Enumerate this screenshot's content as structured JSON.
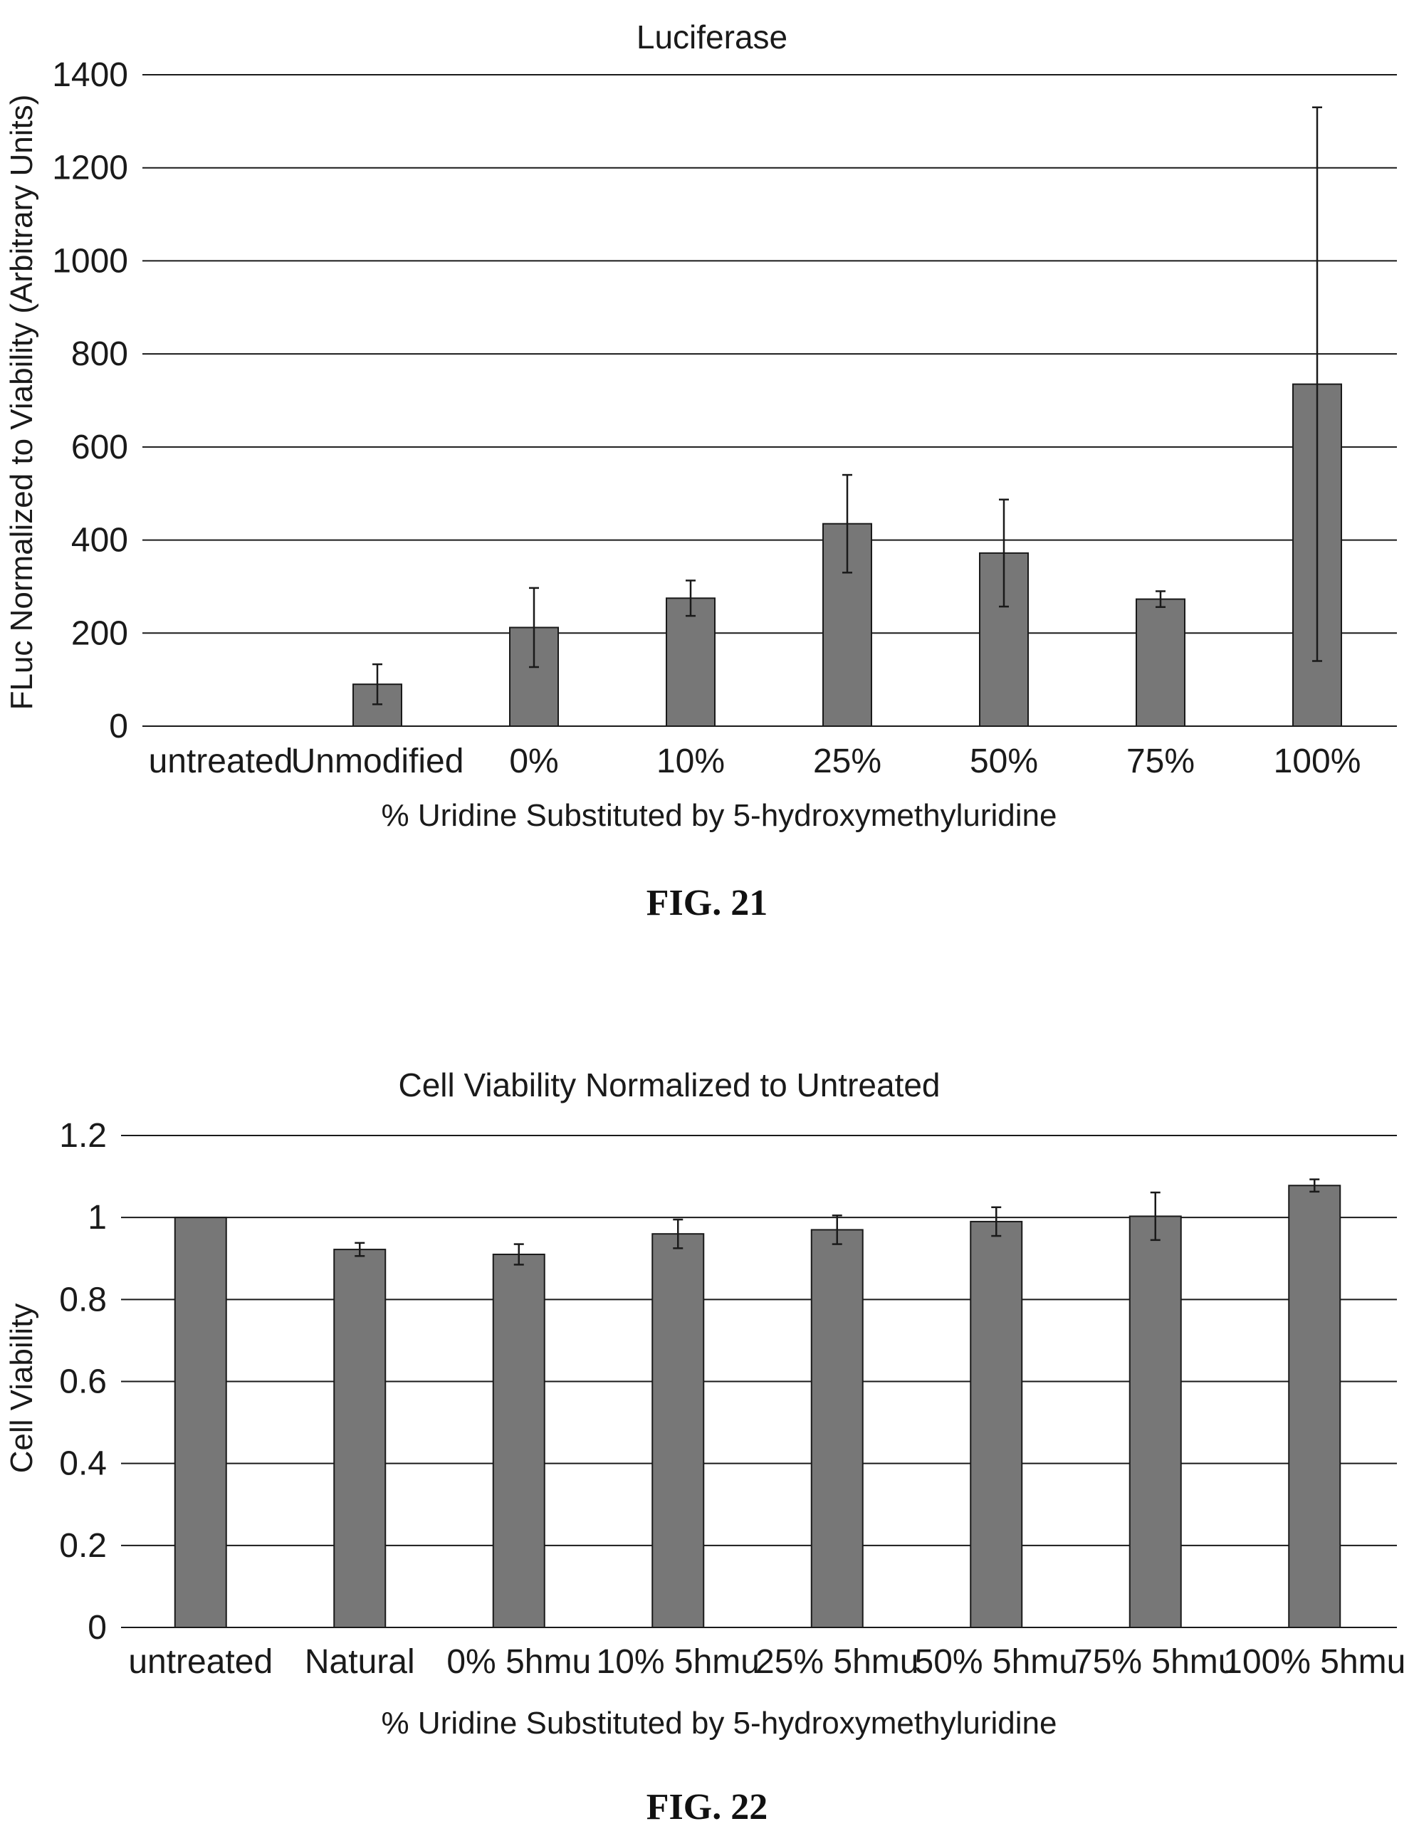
{
  "chart_data": [
    {
      "type": "bar",
      "title": "Luciferase",
      "xlabel": "% Uridine Substituted by 5-hydroxymethyluridine",
      "ylabel": "FLuc Normalized to Viability (Arbitrary Units)",
      "figure_label": "FIG. 21",
      "categories": [
        "untreated",
        "Unmodified",
        "0%",
        "10%",
        "25%",
        "50%",
        "75%",
        "100%"
      ],
      "values": [
        0,
        90,
        212,
        275,
        435,
        372,
        273,
        735
      ],
      "error": [
        0,
        43,
        85,
        38,
        105,
        115,
        17,
        595
      ],
      "yticks": [
        "0",
        "200",
        "400",
        "600",
        "800",
        "1000",
        "1200",
        "1400"
      ],
      "ylim": [
        0,
        1400
      ],
      "grid": true,
      "legend": "none",
      "colors": {
        "bar": "#777777",
        "line": "#1a1a1a"
      }
    },
    {
      "type": "bar",
      "title": "Cell Viability Normalized to Untreated",
      "xlabel": "% Uridine Substituted by 5-hydroxymethyluridine",
      "ylabel": "Cell Viability",
      "figure_label": "FIG. 22",
      "categories": [
        "untreated",
        "Natural",
        "0% 5hmu",
        "10% 5hmu",
        "25% 5hmu",
        "50% 5hmu",
        "75% 5hmu",
        "100% 5hmu"
      ],
      "values": [
        1.0,
        0.922,
        0.91,
        0.96,
        0.97,
        0.99,
        1.003,
        1.078
      ],
      "error": [
        0,
        0.016,
        0.025,
        0.035,
        0.035,
        0.035,
        0.058,
        0.015
      ],
      "yticks": [
        "0",
        "0.2",
        "0.4",
        "0.6",
        "0.8",
        "1",
        "1.2"
      ],
      "ylim": [
        0,
        1.2
      ],
      "grid": true,
      "legend": "none",
      "colors": {
        "bar": "#777777",
        "line": "#1a1a1a"
      }
    }
  ]
}
